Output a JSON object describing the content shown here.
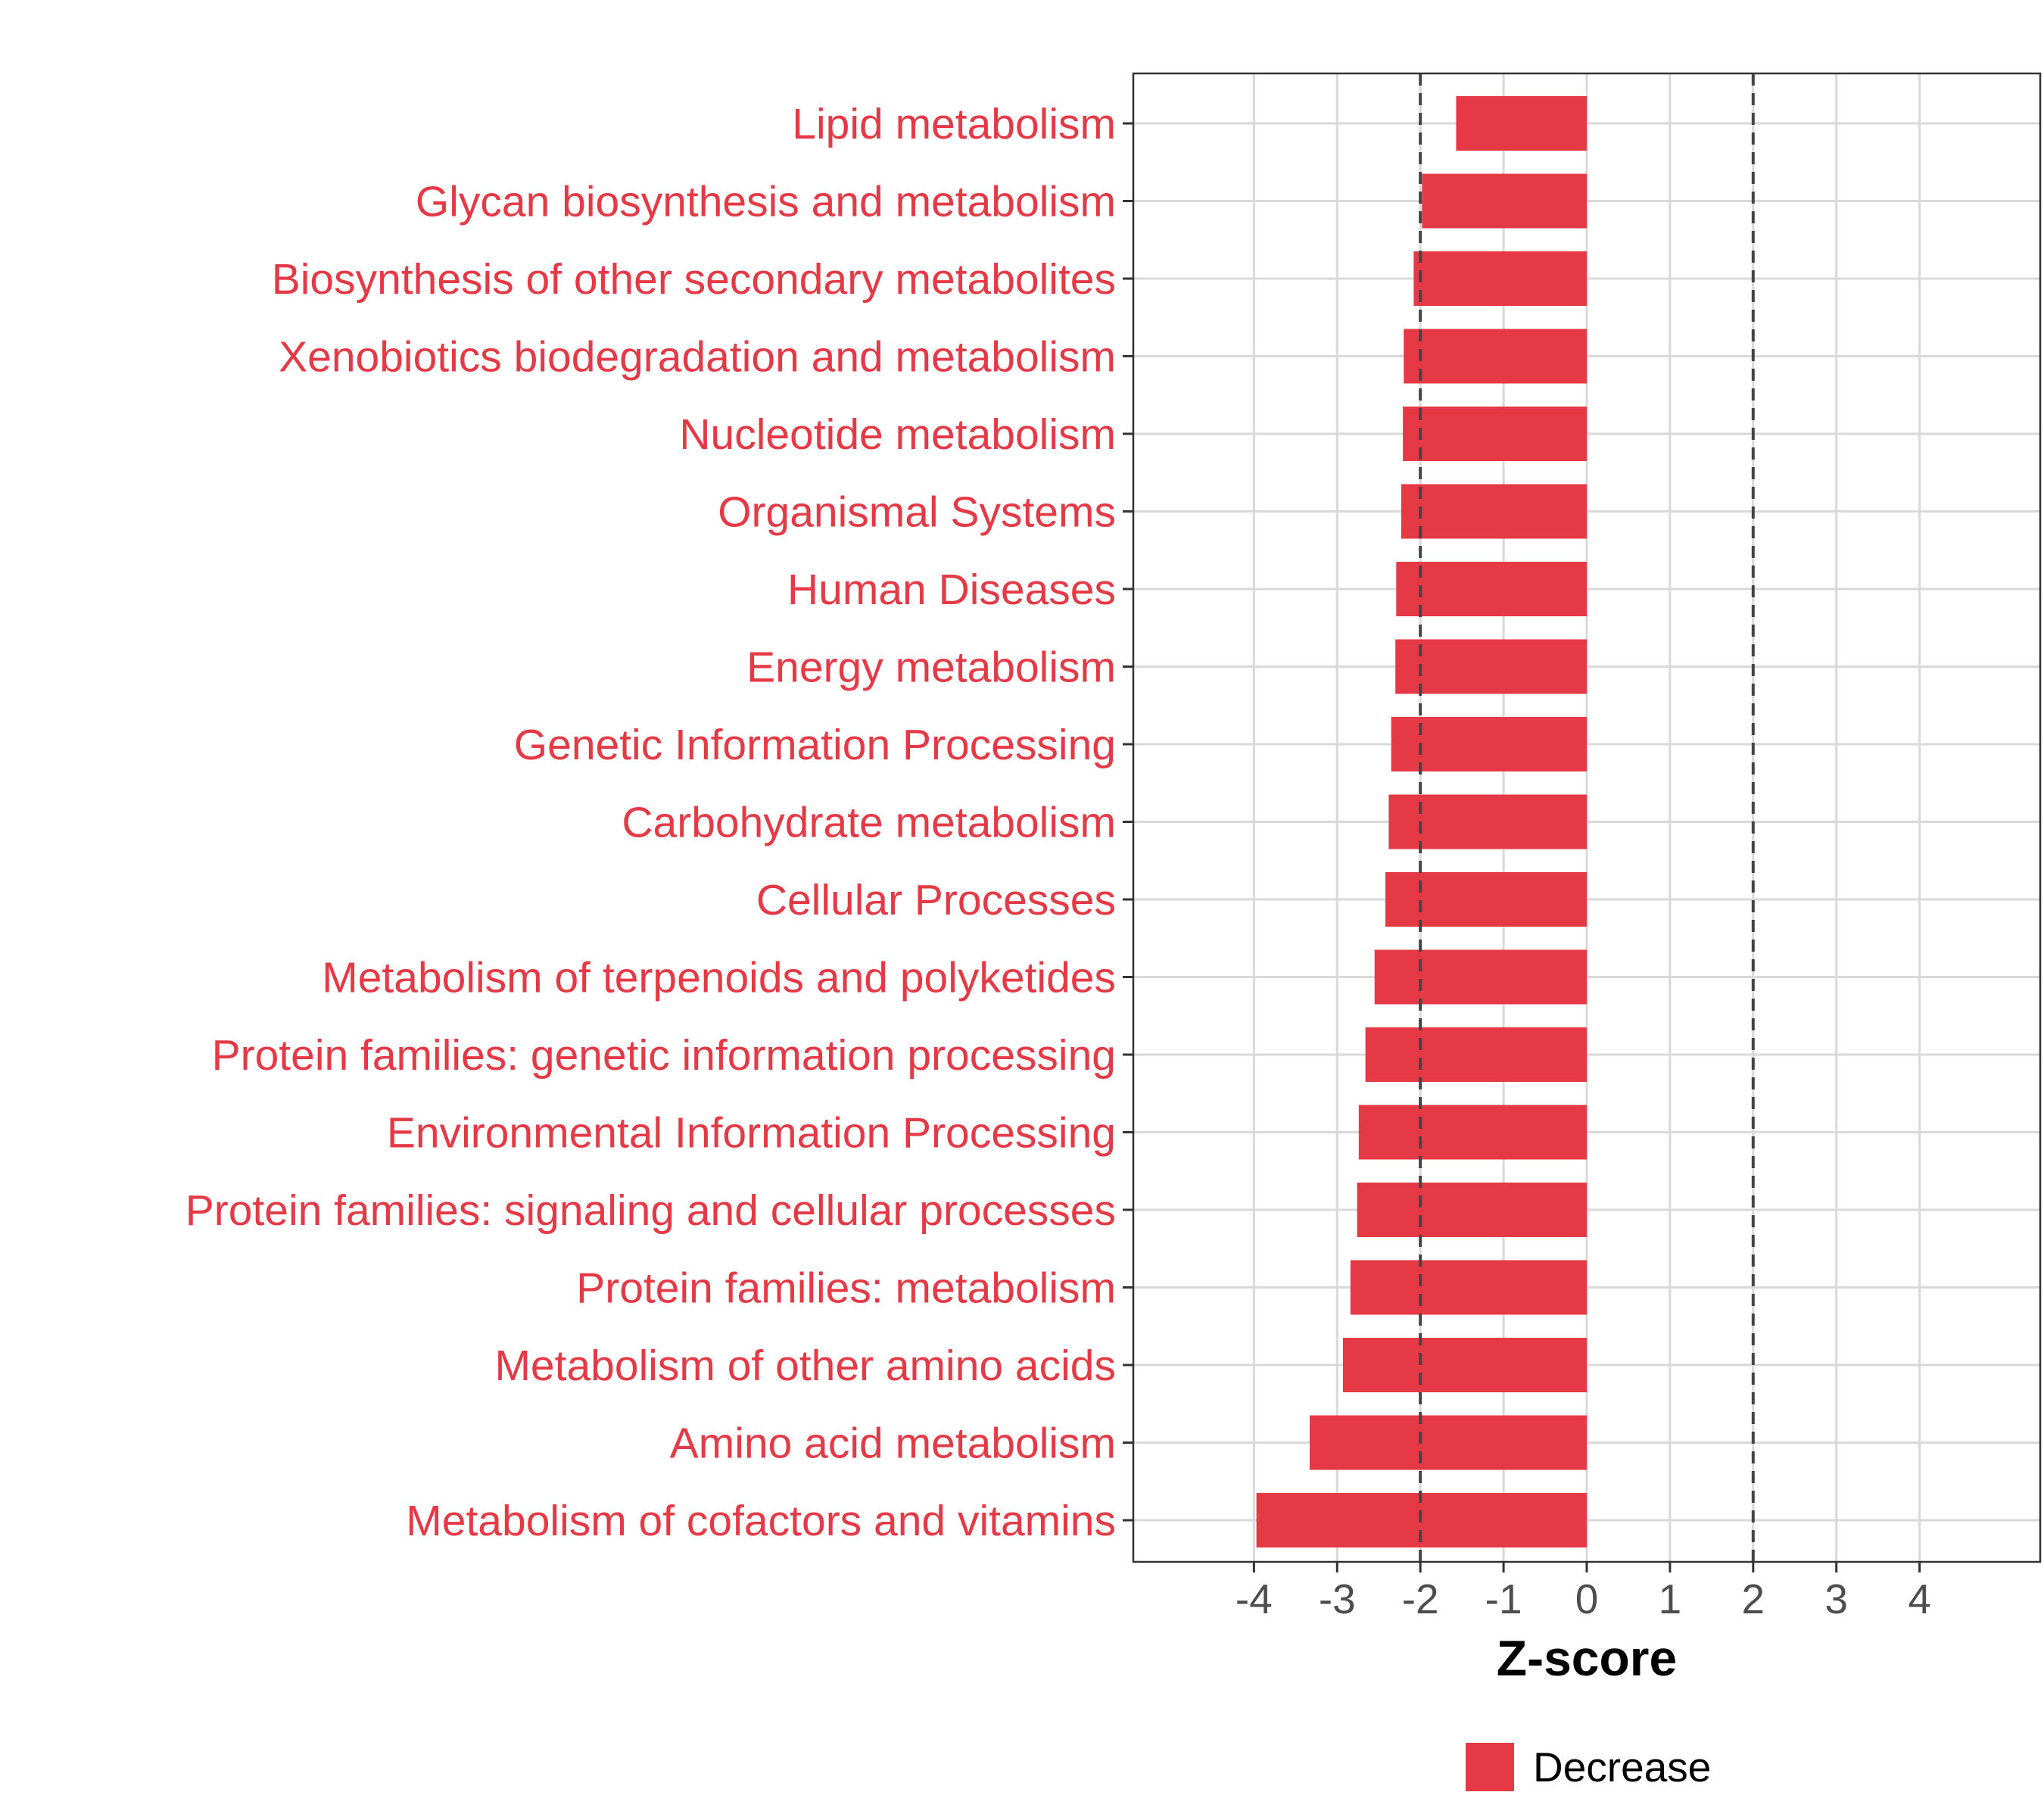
{
  "chart_data": {
    "type": "bar",
    "orientation": "horizontal",
    "categories": [
      "Lipid metabolism",
      "Glycan biosynthesis and metabolism",
      "Biosynthesis of other secondary metabolites",
      "Xenobiotics biodegradation and metabolism",
      "Nucleotide metabolism",
      "Organismal Systems",
      "Human Diseases",
      "Energy metabolism",
      "Genetic Information Processing",
      "Carbohydrate metabolism",
      "Cellular Processes",
      "Metabolism of terpenoids and polyketides",
      "Protein families: genetic information processing",
      "Environmental Information Processing",
      "Protein families: signaling and cellular processes",
      "Protein families: metabolism",
      "Metabolism of other amino acids",
      "Amino acid metabolism",
      "Metabolism of cofactors and vitamins"
    ],
    "values": [
      -1.57,
      -1.98,
      -2.08,
      -2.2,
      -2.21,
      -2.23,
      -2.29,
      -2.3,
      -2.35,
      -2.38,
      -2.42,
      -2.55,
      -2.66,
      -2.74,
      -2.76,
      -2.84,
      -2.93,
      -3.33,
      -3.97
    ],
    "series": [
      {
        "name": "Decrease",
        "color": "#e63946"
      }
    ],
    "xlabel": "Z-score",
    "ylabel": "",
    "title": "",
    "xlim": [
      -5.45,
      5.45
    ],
    "xticks": [
      -4,
      -3,
      -2,
      -1,
      0,
      1,
      2,
      3,
      4
    ],
    "xtick_labels": [
      "-4",
      "-3",
      "-2",
      "-1",
      "0",
      "1",
      "2",
      "3",
      "4"
    ],
    "reference_lines": [
      -2,
      2
    ],
    "grid": true,
    "legend_position": "bottom",
    "colors": {
      "bar": "#e63946",
      "label": "#e63946",
      "grid": "#d9d9d9",
      "ref_line": "#444444",
      "border": "#333333"
    }
  }
}
